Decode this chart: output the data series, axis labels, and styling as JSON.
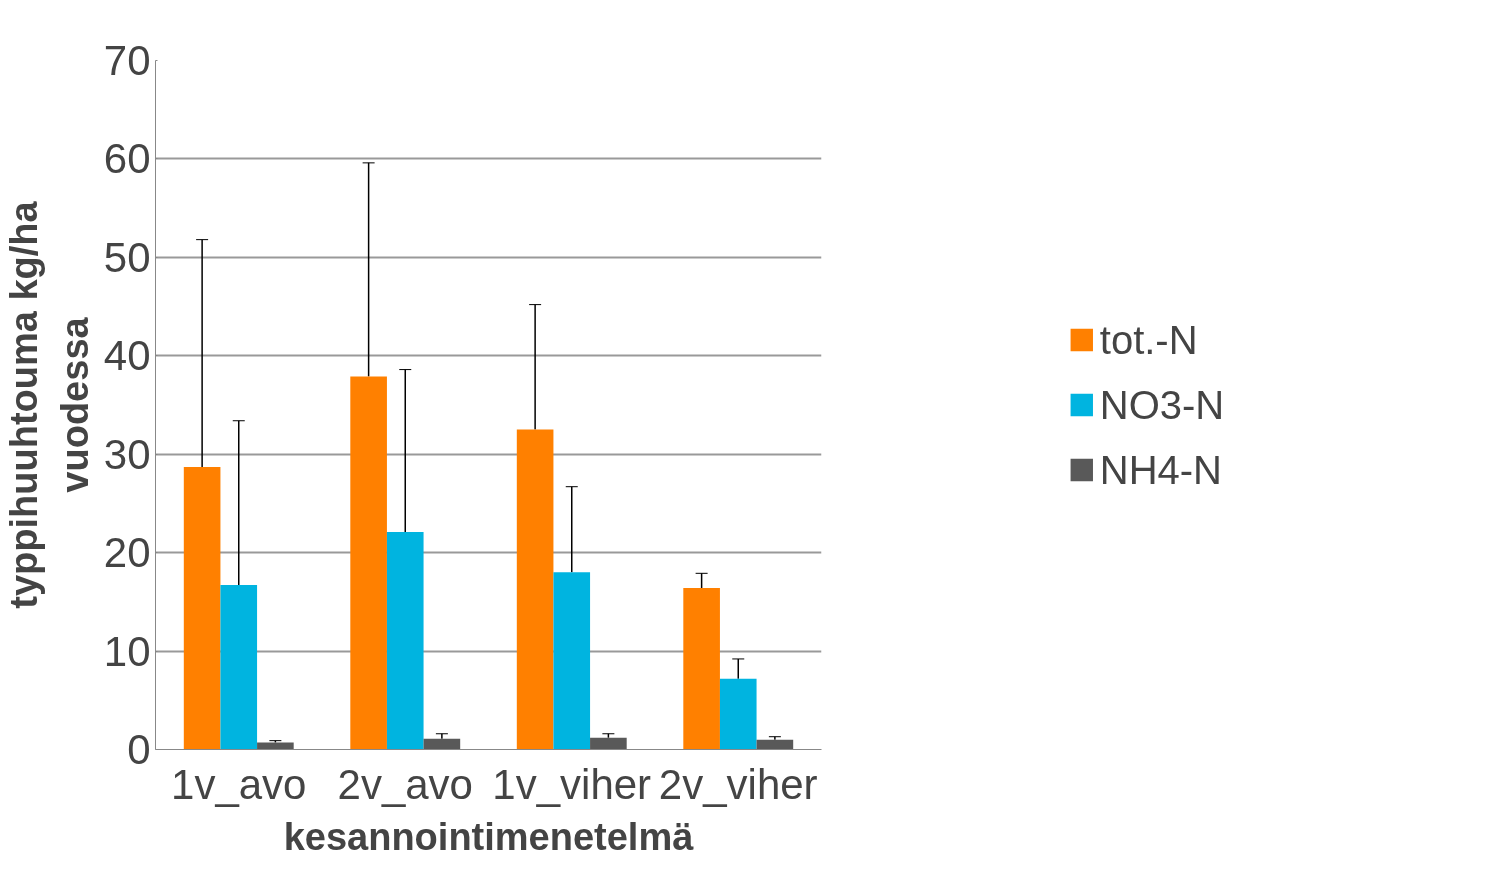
{
  "chart_data": {
    "type": "bar",
    "xlabel": "kesannointimenetelmä",
    "ylabel": "typpihuuhtouma kg/ha\nvuodessa",
    "categories": [
      "1v_avo",
      "2v_avo",
      "1v_viher",
      "2v_viher"
    ],
    "series": [
      {
        "name": "tot.-N",
        "color": "#ff8000",
        "values": [
          28.7,
          37.9,
          32.5,
          16.4
        ],
        "errors": [
          [
            28.7,
            51.8
          ],
          [
            37.9,
            59.6
          ],
          [
            32.5,
            45.2
          ],
          [
            16.4,
            17.9
          ]
        ]
      },
      {
        "name": "NO3-N",
        "color": "#00b4e0",
        "values": [
          16.7,
          22.1,
          18.0,
          7.2
        ],
        "errors": [
          [
            16.7,
            33.4
          ],
          [
            22.1,
            38.6
          ],
          [
            18.0,
            26.7
          ],
          [
            7.2,
            9.2
          ]
        ]
      },
      {
        "name": "NH4-N",
        "color": "#595959",
        "values": [
          0.7,
          1.1,
          1.2,
          1.0
        ],
        "errors": [
          [
            0.7,
            0.9
          ],
          [
            1.1,
            1.6
          ],
          [
            1.2,
            1.6
          ],
          [
            1.0,
            1.3
          ]
        ]
      }
    ],
    "ylim": [
      0,
      70
    ],
    "yticks": [
      0,
      10,
      20,
      30,
      40,
      50,
      60,
      70
    ],
    "grid": "y",
    "legend": "right"
  }
}
